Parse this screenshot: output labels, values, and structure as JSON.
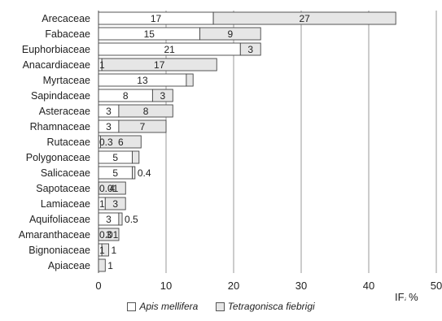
{
  "chart_data": {
    "type": "bar",
    "orientation": "horizontal",
    "stacked": true,
    "categories": [
      "Arecaceae",
      "Fabaceae",
      "Euphorbiaceae",
      "Anacardiaceae",
      "Myrtaceae",
      "Sapindaceae",
      "Asteraceae",
      "Rhamnaceae",
      "Rutaceae",
      "Polygonaceae",
      "Salicaceae",
      "Sapotaceae",
      "Lamiaceae",
      "Aquifoliaceae",
      "Amaranthaceae",
      "Bignoniaceae",
      "Apiaceae"
    ],
    "series": [
      {
        "name": "Apis mellifera",
        "color": "#ffffff",
        "values": [
          17,
          15,
          21,
          0.5,
          13,
          8,
          3,
          3,
          0.3,
          5,
          5,
          0.01,
          1,
          3,
          0.01,
          0.5,
          0
        ],
        "labels": [
          "17",
          "15",
          "21",
          "1",
          "13",
          "8",
          "3",
          "3",
          "0.3",
          "5",
          "5",
          "0.01",
          "1",
          "3",
          "0.01",
          "1",
          ""
        ]
      },
      {
        "name": "Tetragonisca fiebrigi",
        "color": "#e6e6e6",
        "values": [
          27,
          9,
          3,
          17,
          1,
          3,
          8,
          7,
          6,
          1,
          0.4,
          4,
          3,
          0.5,
          3,
          1,
          1
        ],
        "labels": [
          "27",
          "9",
          "3",
          "17",
          "",
          "3",
          "8",
          "7",
          "6",
          "",
          "0.4",
          "4",
          "3",
          "0.5",
          "3",
          "1",
          "1"
        ]
      }
    ],
    "xlabel": "IF",
    "xlabel_sub": "i",
    "xlabel_unit": " %",
    "xlim": [
      0,
      50
    ],
    "xticks": [
      "0",
      "10",
      "20",
      "30",
      "40",
      "50"
    ],
    "grid": true,
    "legend_position": "bottom"
  }
}
